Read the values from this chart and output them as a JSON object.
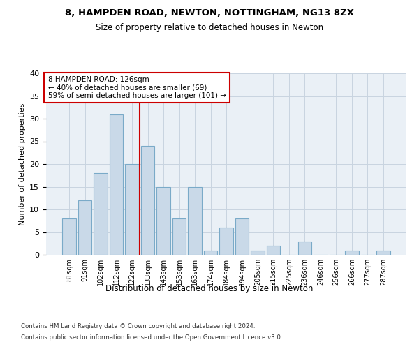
{
  "title1": "8, HAMPDEN ROAD, NEWTON, NOTTINGHAM, NG13 8ZX",
  "title2": "Size of property relative to detached houses in Newton",
  "xlabel": "Distribution of detached houses by size in Newton",
  "ylabel": "Number of detached properties",
  "categories": [
    "81sqm",
    "91sqm",
    "102sqm",
    "112sqm",
    "122sqm",
    "133sqm",
    "143sqm",
    "153sqm",
    "163sqm",
    "174sqm",
    "184sqm",
    "194sqm",
    "205sqm",
    "215sqm",
    "225sqm",
    "236sqm",
    "246sqm",
    "256sqm",
    "266sqm",
    "277sqm",
    "287sqm"
  ],
  "values": [
    8,
    12,
    18,
    31,
    20,
    24,
    15,
    8,
    15,
    1,
    6,
    8,
    1,
    2,
    0,
    3,
    0,
    0,
    1,
    0,
    1
  ],
  "bar_color": "#c9d9e8",
  "bar_edge_color": "#7aaac8",
  "vline_x": 4.5,
  "vline_color": "#cc0000",
  "annotation_text": "8 HAMPDEN ROAD: 126sqm\n← 40% of detached houses are smaller (69)\n59% of semi-detached houses are larger (101) →",
  "annotation_box_color": "#ffffff",
  "annotation_box_edge_color": "#cc0000",
  "ylim": [
    0,
    40
  ],
  "yticks": [
    0,
    5,
    10,
    15,
    20,
    25,
    30,
    35,
    40
  ],
  "grid_color": "#c8d4e0",
  "bg_color": "#eaf0f6",
  "footer1": "Contains HM Land Registry data © Crown copyright and database right 2024.",
  "footer2": "Contains public sector information licensed under the Open Government Licence v3.0."
}
